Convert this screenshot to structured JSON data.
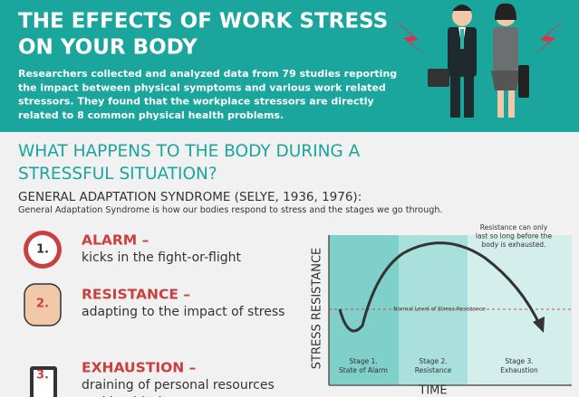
{
  "header": {
    "title_lines": [
      "THE EFFECTS OF WORK STRESS",
      "ON YOUR BODY"
    ],
    "description_lines": [
      "Researchers collected and analyzed data from 79 studies reporting",
      "the impact between physical symptoms and various work related",
      "stressors. They found that the workplace stressors are directly",
      "related to 8 common physical health problems."
    ]
  },
  "section": {
    "heading_lines": [
      "WHAT HAPPENS TO THE BODY DURING A",
      "STRESSFUL SITUATION?"
    ],
    "subheading": "GENERAL ADAPTATION SYNDROME (SELYE, 1936, 1976):",
    "intro": "General Adaptation Syndrome is how our bodies respond to stress and the stages we go through."
  },
  "stages": [
    {
      "number": "1.",
      "title": "ALARM –",
      "description_lines": [
        "kicks in the fight-or-flight"
      ]
    },
    {
      "number": "2.",
      "title": "RESISTANCE –",
      "description_lines": [
        "adapting to the impact of stress"
      ]
    },
    {
      "number": "3.",
      "title": "EXHAUSTION –",
      "description_lines": [
        "draining of personal resources",
        "and health due to stress"
      ]
    }
  ],
  "diagram": {
    "y_label": "STRESS RESISTANCE",
    "x_label": "TIME",
    "normal_level": "Normal Level of Stress Resistance",
    "annotation_lines": [
      "Resistance can only",
      "last so long before the",
      "body is exhausted."
    ],
    "stage_labels": [
      [
        "Stage 1.",
        "State of Alarm"
      ],
      [
        "Stage 2.",
        "Resistance"
      ],
      [
        "Stage 3.",
        "Exhaustion"
      ]
    ]
  }
}
